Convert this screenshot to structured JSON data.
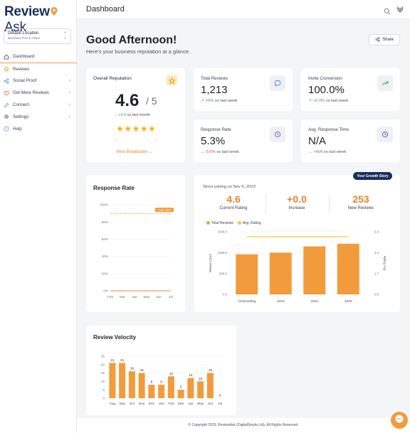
{
  "app": {
    "logo_main": "Review",
    "logo_accent": "Ask",
    "location": {
      "name": "Default Location",
      "business": "Burnham Fish & Chips"
    }
  },
  "sidebar": {
    "items": [
      {
        "label": "Dashboard",
        "icon": "home-icon"
      },
      {
        "label": "Reviews",
        "icon": "star-icon"
      },
      {
        "label": "Social Proof",
        "icon": "share-icon"
      },
      {
        "label": "Get More Reviews",
        "icon": "heart-icon"
      },
      {
        "label": "Connect",
        "icon": "link-icon"
      },
      {
        "label": "Settings",
        "icon": "gear-icon"
      },
      {
        "label": "Help",
        "icon": "help-icon"
      }
    ]
  },
  "header": {
    "title": "Dashboard"
  },
  "greeting": {
    "title": "Good Afternoon!",
    "subtitle": "Here's your business reputation at a glance.",
    "share_label": "Share"
  },
  "reputation": {
    "label": "Overall Reputation",
    "score": "4.6",
    "max": "/ 5",
    "trend": "+0.0",
    "trend_suffix": "vs last month",
    "stars": "★★★★★",
    "link": "View Breakdown"
  },
  "stats": [
    {
      "label": "Total Reviews",
      "value": "1,213",
      "trend": "+0%",
      "suffix": "vs last week",
      "color": "green"
    },
    {
      "label": "Invite Conversion",
      "value": "100.0%",
      "trend": "+0.0%",
      "suffix": "vs last week",
      "color": "green"
    },
    {
      "label": "Response Rate",
      "value": "5.3%",
      "trend": "0.0%",
      "suffix": "vs last week",
      "color": "red"
    },
    {
      "label": "Avg. Response Time",
      "value": "N/A",
      "trend": "+N/A",
      "suffix": "vs last week",
      "color": "green"
    }
  ],
  "response_rate": {
    "title": "Response Rate",
    "goal_label": "Goal: 90%"
  },
  "growth": {
    "badge": "Your Growth Story",
    "since": "Since joining on Nov 6, 2023",
    "stats": [
      {
        "value": "4.6",
        "label": "Current Rating"
      },
      {
        "value": "+0.0",
        "label": "Increase"
      },
      {
        "value": "253",
        "label": "New Reviews"
      }
    ],
    "legend": [
      "Total Reviews",
      "Avg. Rating"
    ],
    "y_left_label": "Review Count",
    "y_right_label": "Rating Avg"
  },
  "velocity": {
    "title": "Review Velocity"
  },
  "footer": {
    "text": "© Copyright 2025, ReviewAsk (DigitalSmyle Ltd). All Rights Reserved."
  },
  "colors": {
    "accent": "#f29b3c",
    "navy": "#1b2e5c",
    "green": "#2ea46a",
    "red": "#e04848",
    "star": "#f5b400"
  },
  "chart_data": [
    {
      "type": "line",
      "title": "Response Rate",
      "categories": [
        "Feb",
        "Mar",
        "Apr",
        "May",
        "Jun",
        "Jul"
      ],
      "series": [
        {
          "values": [
            0,
            0,
            0,
            0,
            0,
            0
          ]
        }
      ],
      "goal": 90,
      "ylim": [
        0,
        100
      ],
      "yticks": [
        "0%",
        "20%",
        "40%",
        "60%",
        "80%",
        "100%"
      ]
    },
    {
      "type": "bar",
      "categories": [
        "Onboarding",
        "2023",
        "2024",
        "2025"
      ],
      "series": [
        {
          "name": "Total Reviews",
          "values": [
            960,
            1000,
            1150,
            1213
          ]
        },
        {
          "name": "Avg. Rating",
          "values": [
            4.6,
            4.6,
            4.6,
            4.6
          ]
        }
      ],
      "y_left_ticks": [
        "0.0",
        "500.0",
        "1000.0",
        "1500.0"
      ],
      "y_right_ticks": [
        "0.0",
        "1.7",
        "3.4",
        "5.0"
      ],
      "ylim_left": [
        0,
        1500
      ],
      "ylim_right": [
        0,
        5
      ]
    },
    {
      "type": "bar",
      "title": "Review Velocity",
      "categories": [
        "Aug",
        "Sep",
        "Oct",
        "Nov",
        "Dec",
        "Jan",
        "Feb",
        "Mar",
        "Apr",
        "May",
        "Jun",
        "Jul"
      ],
      "values": [
        21,
        21,
        16,
        15,
        8,
        8,
        13,
        5,
        12,
        10,
        15,
        0
      ],
      "yticks": [
        "0",
        "5",
        "10",
        "15",
        "20",
        "25"
      ],
      "ylim": [
        0,
        25
      ]
    }
  ]
}
